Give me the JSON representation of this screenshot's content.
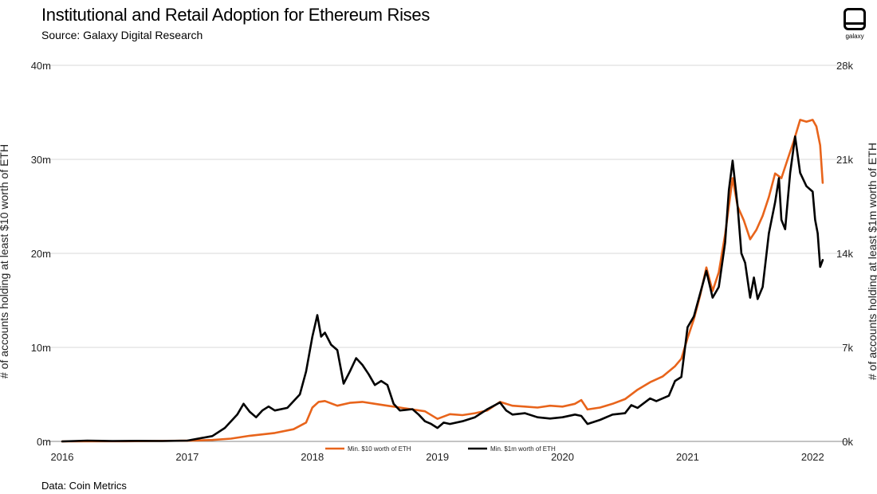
{
  "header": {
    "title": "Institutional and Retail Adoption for Ethereum Rises",
    "subtitle": "Source: Galaxy Digital Research",
    "logo_text": "galaxy"
  },
  "footer": {
    "note": "Data: Coin Metrics"
  },
  "colors": {
    "orange": "#e8641b",
    "black": "#000000",
    "grid": "#d9d9d9"
  },
  "chart_data": {
    "type": "line",
    "title": "Institutional and Retail Adoption for Ethereum Rises",
    "xlabel": "",
    "ylabel": "# of accounts holding at least $10 worth of ETH",
    "y2label": "# of accounts holding at least $1m worth of ETH",
    "xlim": [
      2016.0,
      2022.1
    ],
    "ylim": [
      0,
      40000000
    ],
    "y2lim": [
      0,
      28000
    ],
    "x_ticks": [
      2016,
      2017,
      2018,
      2019,
      2020,
      2021,
      2022
    ],
    "x_tick_labels": [
      "2016",
      "2017",
      "2018",
      "2019",
      "2020",
      "2021",
      "2022"
    ],
    "y_ticks": [
      0,
      10000000,
      20000000,
      30000000,
      40000000
    ],
    "y_tick_labels": [
      "0m",
      "10m",
      "20m",
      "30m",
      "40m"
    ],
    "y2_ticks": [
      0,
      7000,
      14000,
      21000,
      28000
    ],
    "y2_tick_labels": [
      "0k",
      "7k",
      "14k",
      "21k",
      "28k"
    ],
    "grid": true,
    "legend_position": "bottom-center",
    "series": [
      {
        "name": "Min. $10 worth of ETH",
        "axis": "left",
        "color": "#e8641b",
        "points": [
          [
            2016.0,
            0
          ],
          [
            2016.5,
            20000
          ],
          [
            2017.0,
            80000
          ],
          [
            2017.2,
            150000
          ],
          [
            2017.35,
            300000
          ],
          [
            2017.5,
            600000
          ],
          [
            2017.7,
            900000
          ],
          [
            2017.85,
            1300000
          ],
          [
            2017.95,
            2000000
          ],
          [
            2018.0,
            3600000
          ],
          [
            2018.05,
            4200000
          ],
          [
            2018.1,
            4300000
          ],
          [
            2018.2,
            3800000
          ],
          [
            2018.3,
            4100000
          ],
          [
            2018.4,
            4200000
          ],
          [
            2018.5,
            4000000
          ],
          [
            2018.6,
            3800000
          ],
          [
            2018.7,
            3600000
          ],
          [
            2018.8,
            3400000
          ],
          [
            2018.9,
            3200000
          ],
          [
            2019.0,
            2400000
          ],
          [
            2019.1,
            2900000
          ],
          [
            2019.2,
            2800000
          ],
          [
            2019.3,
            3000000
          ],
          [
            2019.4,
            3300000
          ],
          [
            2019.5,
            4200000
          ],
          [
            2019.6,
            3800000
          ],
          [
            2019.7,
            3700000
          ],
          [
            2019.8,
            3600000
          ],
          [
            2019.9,
            3800000
          ],
          [
            2020.0,
            3700000
          ],
          [
            2020.1,
            4000000
          ],
          [
            2020.15,
            4400000
          ],
          [
            2020.2,
            3400000
          ],
          [
            2020.3,
            3600000
          ],
          [
            2020.4,
            4000000
          ],
          [
            2020.5,
            4500000
          ],
          [
            2020.6,
            5500000
          ],
          [
            2020.7,
            6300000
          ],
          [
            2020.8,
            6900000
          ],
          [
            2020.9,
            8000000
          ],
          [
            2020.95,
            8800000
          ],
          [
            2021.0,
            11000000
          ],
          [
            2021.05,
            13000000
          ],
          [
            2021.1,
            15500000
          ],
          [
            2021.15,
            18500000
          ],
          [
            2021.2,
            16000000
          ],
          [
            2021.25,
            18000000
          ],
          [
            2021.3,
            22000000
          ],
          [
            2021.33,
            25000000
          ],
          [
            2021.36,
            28000000
          ],
          [
            2021.4,
            25000000
          ],
          [
            2021.45,
            23500000
          ],
          [
            2021.5,
            21500000
          ],
          [
            2021.55,
            22500000
          ],
          [
            2021.6,
            24000000
          ],
          [
            2021.65,
            26000000
          ],
          [
            2021.7,
            28500000
          ],
          [
            2021.75,
            28000000
          ],
          [
            2021.8,
            30000000
          ],
          [
            2021.85,
            32000000
          ],
          [
            2021.9,
            34200000
          ],
          [
            2021.95,
            34000000
          ],
          [
            2022.0,
            34200000
          ],
          [
            2022.03,
            33500000
          ],
          [
            2022.06,
            31500000
          ],
          [
            2022.08,
            27500000
          ]
        ]
      },
      {
        "name": "Min. $1m worth of ETH",
        "axis": "right",
        "color": "#000000",
        "points": [
          [
            2016.0,
            0
          ],
          [
            2016.2,
            60
          ],
          [
            2016.4,
            30
          ],
          [
            2016.6,
            40
          ],
          [
            2016.8,
            30
          ],
          [
            2017.0,
            60
          ],
          [
            2017.2,
            400
          ],
          [
            2017.3,
            1000
          ],
          [
            2017.4,
            2000
          ],
          [
            2017.45,
            2800
          ],
          [
            2017.5,
            2200
          ],
          [
            2017.55,
            1800
          ],
          [
            2017.6,
            2300
          ],
          [
            2017.65,
            2600
          ],
          [
            2017.7,
            2300
          ],
          [
            2017.8,
            2500
          ],
          [
            2017.9,
            3500
          ],
          [
            2017.95,
            5200
          ],
          [
            2018.0,
            7800
          ],
          [
            2018.04,
            9400
          ],
          [
            2018.07,
            7800
          ],
          [
            2018.1,
            8100
          ],
          [
            2018.15,
            7200
          ],
          [
            2018.2,
            6800
          ],
          [
            2018.25,
            4300
          ],
          [
            2018.3,
            5200
          ],
          [
            2018.35,
            6200
          ],
          [
            2018.4,
            5700
          ],
          [
            2018.45,
            5000
          ],
          [
            2018.5,
            4200
          ],
          [
            2018.55,
            4500
          ],
          [
            2018.6,
            4200
          ],
          [
            2018.65,
            2800
          ],
          [
            2018.7,
            2300
          ],
          [
            2018.8,
            2400
          ],
          [
            2018.85,
            2000
          ],
          [
            2018.9,
            1500
          ],
          [
            2018.95,
            1300
          ],
          [
            2019.0,
            1000
          ],
          [
            2019.05,
            1400
          ],
          [
            2019.1,
            1300
          ],
          [
            2019.2,
            1500
          ],
          [
            2019.3,
            1800
          ],
          [
            2019.4,
            2400
          ],
          [
            2019.5,
            2900
          ],
          [
            2019.55,
            2300
          ],
          [
            2019.6,
            2000
          ],
          [
            2019.7,
            2100
          ],
          [
            2019.8,
            1800
          ],
          [
            2019.9,
            1700
          ],
          [
            2020.0,
            1800
          ],
          [
            2020.1,
            2000
          ],
          [
            2020.15,
            1900
          ],
          [
            2020.2,
            1300
          ],
          [
            2020.3,
            1600
          ],
          [
            2020.4,
            2000
          ],
          [
            2020.5,
            2100
          ],
          [
            2020.55,
            2700
          ],
          [
            2020.6,
            2500
          ],
          [
            2020.7,
            3200
          ],
          [
            2020.75,
            3000
          ],
          [
            2020.8,
            3200
          ],
          [
            2020.85,
            3400
          ],
          [
            2020.9,
            4500
          ],
          [
            2020.95,
            4800
          ],
          [
            2021.0,
            8500
          ],
          [
            2021.05,
            9300
          ],
          [
            2021.1,
            11000
          ],
          [
            2021.15,
            12700
          ],
          [
            2021.2,
            10700
          ],
          [
            2021.25,
            11500
          ],
          [
            2021.3,
            14800
          ],
          [
            2021.33,
            18700
          ],
          [
            2021.36,
            20900
          ],
          [
            2021.4,
            17500
          ],
          [
            2021.43,
            14000
          ],
          [
            2021.46,
            13300
          ],
          [
            2021.5,
            10700
          ],
          [
            2021.53,
            12200
          ],
          [
            2021.56,
            10600
          ],
          [
            2021.6,
            11500
          ],
          [
            2021.65,
            15500
          ],
          [
            2021.7,
            17800
          ],
          [
            2021.73,
            19600
          ],
          [
            2021.75,
            16500
          ],
          [
            2021.78,
            15800
          ],
          [
            2021.82,
            20000
          ],
          [
            2021.86,
            22700
          ],
          [
            2021.9,
            20000
          ],
          [
            2021.95,
            19000
          ],
          [
            2022.0,
            18600
          ],
          [
            2022.02,
            16500
          ],
          [
            2022.04,
            15500
          ],
          [
            2022.06,
            13000
          ],
          [
            2022.08,
            13500
          ]
        ]
      }
    ]
  }
}
